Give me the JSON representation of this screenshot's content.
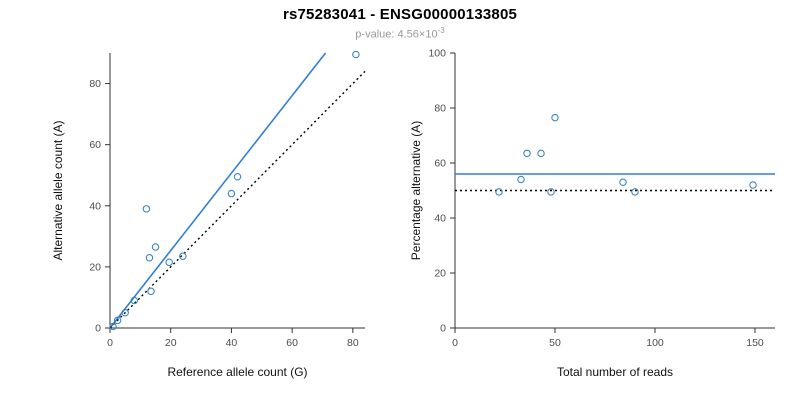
{
  "header": {
    "title": "rs75283041 - ENSG00000133805",
    "subtitle_prefix": "p-value: ",
    "subtitle_value": "4.56×10",
    "subtitle_exponent": "-3"
  },
  "colors": {
    "points": "#3d87be",
    "fit_line": "#2e7fd9",
    "identity_line": "#000000"
  },
  "chart_data": [
    {
      "id": "allele-count-scatter",
      "type": "scatter",
      "title": "",
      "xlabel": "Reference allele count (G)",
      "ylabel": "Alternative allele count (A)",
      "xlim": [
        0,
        84
      ],
      "ylim": [
        0,
        90
      ],
      "xticks": [
        0,
        20,
        40,
        60,
        80
      ],
      "yticks": [
        0,
        20,
        40,
        60,
        80
      ],
      "points": [
        [
          1,
          0.5
        ],
        [
          2.5,
          2.5
        ],
        [
          5,
          5
        ],
        [
          8,
          9
        ],
        [
          12,
          39
        ],
        [
          13,
          23
        ],
        [
          15,
          26.5
        ],
        [
          13.5,
          12
        ],
        [
          19.5,
          21.5
        ],
        [
          24,
          23.5
        ],
        [
          40,
          44
        ],
        [
          42,
          49.5
        ],
        [
          81,
          89.5
        ]
      ],
      "lines": [
        {
          "name": "fitted-ratio-line",
          "style": "solid",
          "color_key": "fit_line",
          "from": [
            0,
            0
          ],
          "to": [
            71,
            90
          ]
        },
        {
          "name": "identity-line",
          "style": "dotted",
          "color_key": "identity_line",
          "from": [
            0,
            0
          ],
          "to": [
            84,
            84
          ]
        }
      ]
    },
    {
      "id": "percentage-vs-reads-scatter",
      "type": "scatter",
      "title": "",
      "xlabel": "Total number of reads",
      "ylabel": "Percentage alternative (A)",
      "xlim": [
        0,
        160
      ],
      "ylim": [
        0,
        100
      ],
      "xticks": [
        0,
        50,
        100,
        150
      ],
      "yticks": [
        0,
        20,
        40,
        60,
        80,
        100
      ],
      "points": [
        [
          22,
          49.5
        ],
        [
          33,
          54
        ],
        [
          36,
          63.5
        ],
        [
          43,
          63.5
        ],
        [
          50,
          76.5
        ],
        [
          48,
          49.5
        ],
        [
          84,
          53
        ],
        [
          90,
          49.5
        ],
        [
          149,
          52
        ]
      ],
      "lines": [
        {
          "name": "mean-percentage-line",
          "style": "solid",
          "color_key": "fit_line",
          "from": [
            0,
            56
          ],
          "to": [
            160,
            56
          ]
        },
        {
          "name": "expected-percentage-line",
          "style": "dotted",
          "color_key": "identity_line",
          "from": [
            0,
            50
          ],
          "to": [
            160,
            50
          ]
        }
      ]
    }
  ]
}
